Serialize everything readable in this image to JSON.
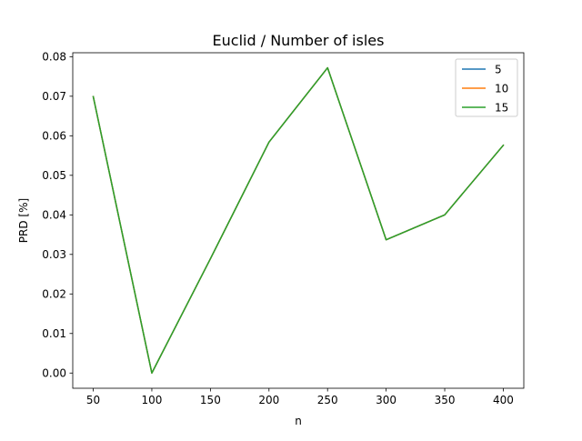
{
  "chart_data": {
    "type": "line",
    "title": "Euclid / Number of isles",
    "xlabel": "n",
    "ylabel": "PRD [%]",
    "x": [
      50,
      100,
      150,
      200,
      250,
      300,
      350,
      400
    ],
    "xlim": [
      32.5,
      417.5
    ],
    "ylim": [
      -0.00385,
      0.081
    ],
    "xticks": [
      50,
      100,
      150,
      200,
      250,
      300,
      350,
      400
    ],
    "yticks": [
      0.0,
      0.01,
      0.02,
      0.03,
      0.04,
      0.05,
      0.06,
      0.07,
      0.08
    ],
    "ytick_labels": [
      "0.00",
      "0.01",
      "0.02",
      "0.03",
      "0.04",
      "0.05",
      "0.06",
      "0.07",
      "0.08"
    ],
    "grid": false,
    "legend_position": "top-right",
    "series": [
      {
        "name": "5",
        "color": "#1f77b4",
        "values": [
          0.0699,
          0.0,
          0.0289,
          0.0584,
          0.0772,
          0.0337,
          0.04,
          0.0576
        ]
      },
      {
        "name": "10",
        "color": "#ff7f0e",
        "values": [
          0.0699,
          0.0,
          0.0289,
          0.0584,
          0.0772,
          0.0337,
          0.04,
          0.0576
        ]
      },
      {
        "name": "15",
        "color": "#2ca02c",
        "values": [
          0.0699,
          0.0,
          0.0289,
          0.0584,
          0.0772,
          0.0337,
          0.04,
          0.0576
        ]
      }
    ]
  }
}
